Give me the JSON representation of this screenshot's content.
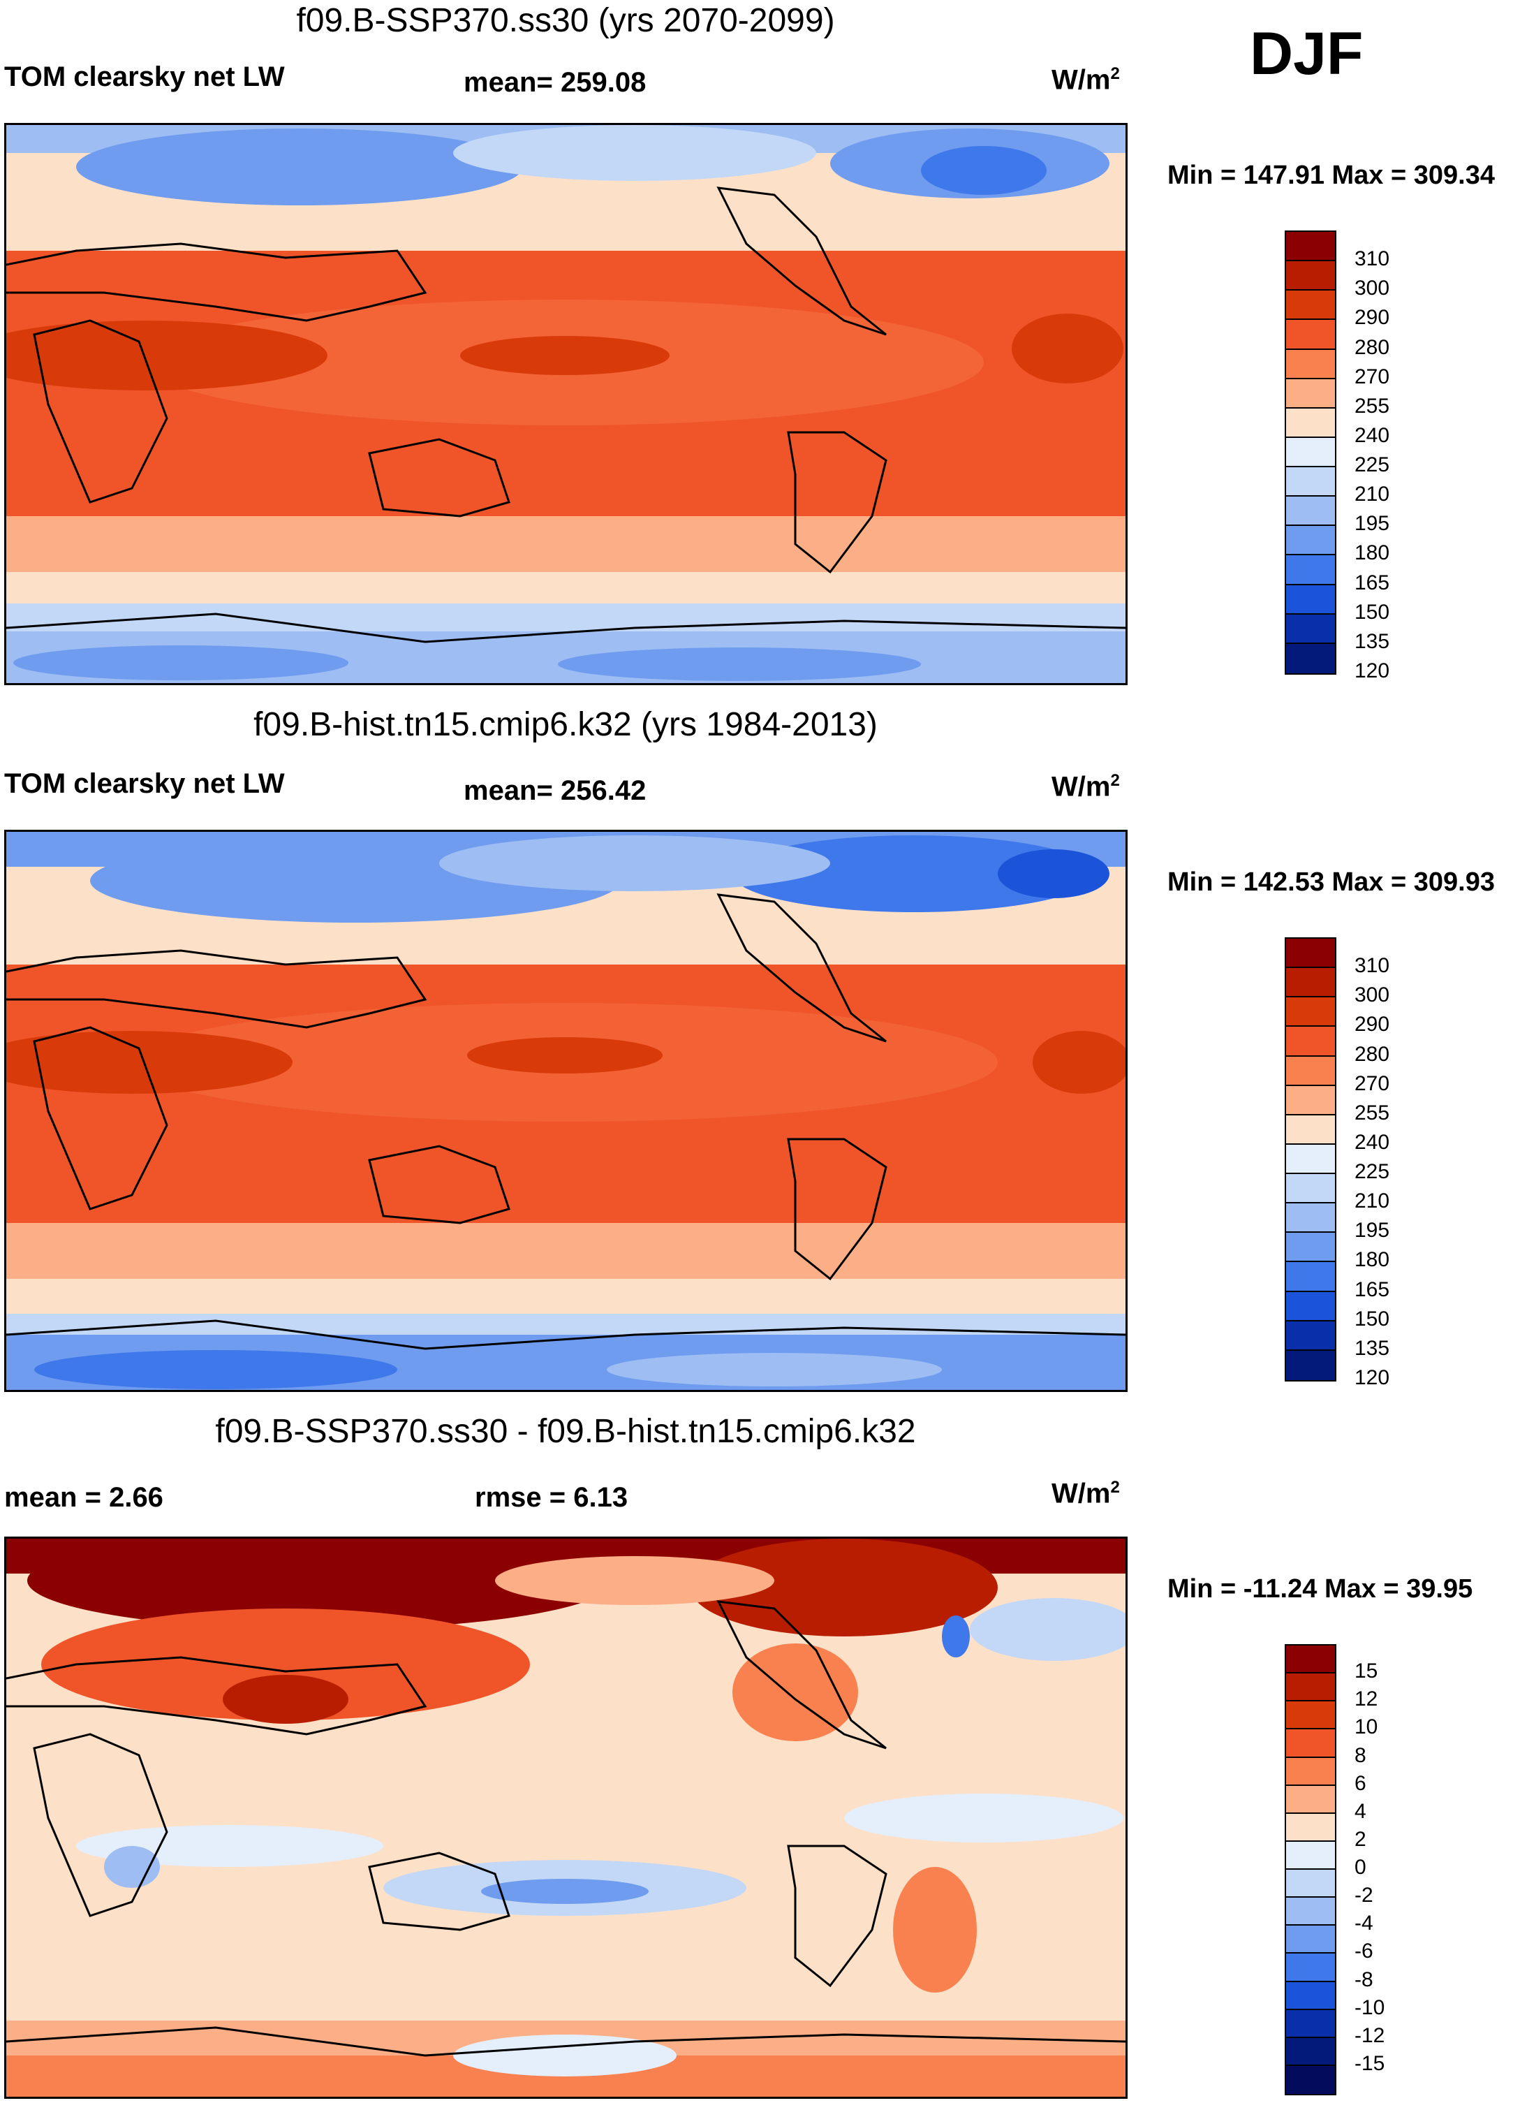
{
  "season": "DJF",
  "panels": [
    {
      "title": "f09.B-SSP370.ss30 (yrs 2070-2099)",
      "variable": "TOM clearsky net LW",
      "stat1": "mean= 259.08",
      "stat2": "",
      "units_base": "W/m",
      "units_exp": "2",
      "minmax": "Min = 147.91 Max = 309.34",
      "colorbar": {
        "colors": [
          "#8b0000",
          "#b81d00",
          "#d93a0a",
          "#f0552a",
          "#f9804f",
          "#fcae87",
          "#fde0c8",
          "#e5eefb",
          "#c3d8f7",
          "#9dbdf3",
          "#6f9cef",
          "#3f78ea",
          "#1b54d8",
          "#0a2fab",
          "#041a7a"
        ],
        "labels": [
          "310",
          "300",
          "290",
          "280",
          "270",
          "255",
          "240",
          "225",
          "210",
          "195",
          "180",
          "165",
          "150",
          "135",
          "120"
        ]
      }
    },
    {
      "title": "f09.B-hist.tn15.cmip6.k32 (yrs 1984-2013)",
      "variable": "TOM clearsky net LW",
      "stat1": "mean= 256.42",
      "stat2": "",
      "units_base": "W/m",
      "units_exp": "2",
      "minmax": "Min = 142.53 Max = 309.93",
      "colorbar": {
        "colors": [
          "#8b0000",
          "#b81d00",
          "#d93a0a",
          "#f0552a",
          "#f9804f",
          "#fcae87",
          "#fde0c8",
          "#e5eefb",
          "#c3d8f7",
          "#9dbdf3",
          "#6f9cef",
          "#3f78ea",
          "#1b54d8",
          "#0a2fab",
          "#041a7a"
        ],
        "labels": [
          "310",
          "300",
          "290",
          "280",
          "270",
          "255",
          "240",
          "225",
          "210",
          "195",
          "180",
          "165",
          "150",
          "135",
          "120"
        ]
      }
    },
    {
      "title": "f09.B-SSP370.ss30 - f09.B-hist.tn15.cmip6.k32",
      "variable": "mean =   2.66",
      "stat1": "",
      "stat2": "rmse =   6.13",
      "units_base": "W/m",
      "units_exp": "2",
      "minmax": "Min = -11.24 Max =  39.95",
      "colorbar": {
        "colors": [
          "#8b0000",
          "#b81d00",
          "#d93a0a",
          "#f0552a",
          "#f9804f",
          "#fcae87",
          "#fde0c8",
          "#e5eefb",
          "#c3d8f7",
          "#9dbdf3",
          "#6f9cef",
          "#3f78ea",
          "#1b54d8",
          "#0a2fab",
          "#041a7a",
          "#020b5c"
        ],
        "labels": [
          "15",
          "12",
          "10",
          "8",
          "6",
          "4",
          "2",
          "0",
          "-2",
          "-4",
          "-6",
          "-8",
          "-10",
          "-12",
          "-15"
        ]
      }
    }
  ]
}
